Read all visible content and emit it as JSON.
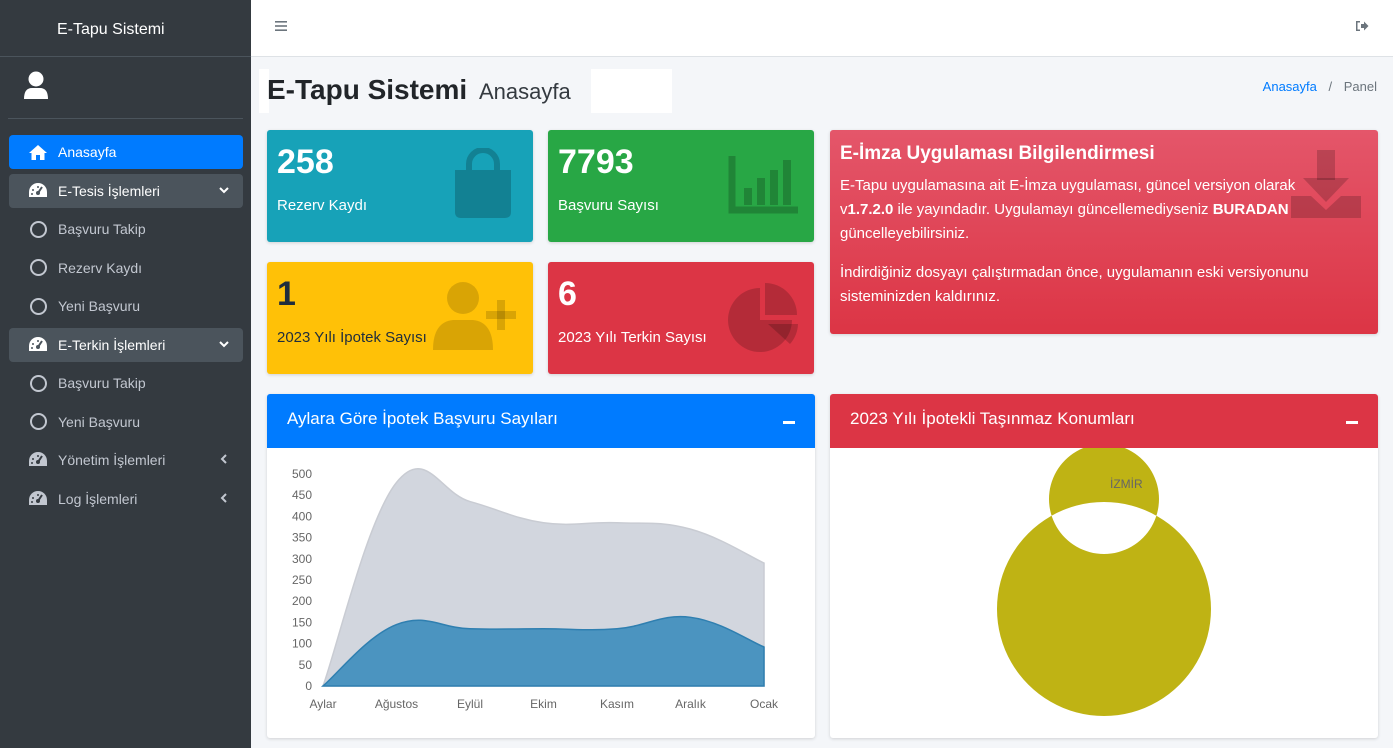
{
  "sidebar": {
    "brand": "E-Tapu Sistemi",
    "items": [
      {
        "label": "Anasayfa"
      },
      {
        "label": "E-Tesis İşlemleri"
      },
      {
        "label": "Başvuru Takip"
      },
      {
        "label": "Rezerv Kaydı"
      },
      {
        "label": "Yeni Başvuru"
      },
      {
        "label": "E-Terkin İşlemleri"
      },
      {
        "label": "Başvuru Takip"
      },
      {
        "label": "Yeni Başvuru"
      },
      {
        "label": "Yönetim İşlemleri"
      },
      {
        "label": "Log İşlemleri"
      }
    ]
  },
  "header": {
    "title": "E-Tapu Sistemi",
    "subtitle": "Anasayfa",
    "breadcrumb": {
      "home": "Anasayfa",
      "sep": "/",
      "current": "Panel"
    }
  },
  "boxes": {
    "rezerv": {
      "value": "258",
      "label": "Rezerv Kaydı"
    },
    "basvuru": {
      "value": "7793",
      "label": "Başvuru Sayısı"
    },
    "ipotek": {
      "value": "1",
      "label": "2023 Yılı İpotek Sayısı"
    },
    "terkin": {
      "value": "6",
      "label": "2023 Yılı Terkin Sayısı"
    }
  },
  "info": {
    "title": "E-İmza Uygulaması Bilgilendirmesi",
    "p1a": "E-Tapu uygulamasına ait E-İmza uygulaması, güncel versiyon olarak v",
    "p1version": "1.7.2.0",
    "p1b": " ile yayındadır. Uygulamayı güncellemediyseniz ",
    "p1link": "BURADAN",
    "p1c": " güncelleyebilirsiniz.",
    "p2": "İndirdiğiniz dosyayı çalıştırmadan önce, uygulamanın eski versiyonunu sisteminizden kaldırınız."
  },
  "cards": {
    "left_title": "Aylara Göre İpotek Başvuru Sayıları",
    "right_title": "2023 Yılı İpotekli Taşınmaz Konumları"
  },
  "colors": {
    "primary": "#007bff",
    "teal": "#17a2b8",
    "green": "#28a745",
    "yellow": "#ffc107",
    "red": "#dc3545",
    "sidebar": "#343a40",
    "donut": "#bfb314"
  },
  "chart_data": [
    {
      "type": "area",
      "categories": [
        "Aylar",
        "Ağustos",
        "Eylül",
        "Ekim",
        "Kasım",
        "Aralık",
        "Ocak"
      ],
      "ylim": [
        0,
        500
      ],
      "yticks": [
        0,
        50,
        100,
        150,
        200,
        250,
        300,
        350,
        400,
        450,
        500
      ],
      "series": [
        {
          "values": [
            0,
            480,
            435,
            385,
            385,
            370,
            290
          ],
          "color": "#d2d6de"
        },
        {
          "values": [
            0,
            145,
            135,
            135,
            135,
            162,
            92
          ],
          "color": "#3c8dbc"
        }
      ]
    },
    {
      "type": "pie",
      "donut": true,
      "legend": "top",
      "labels": [
        "İZMİR"
      ],
      "values": [
        1
      ],
      "colors": [
        "#bfb314"
      ]
    }
  ]
}
